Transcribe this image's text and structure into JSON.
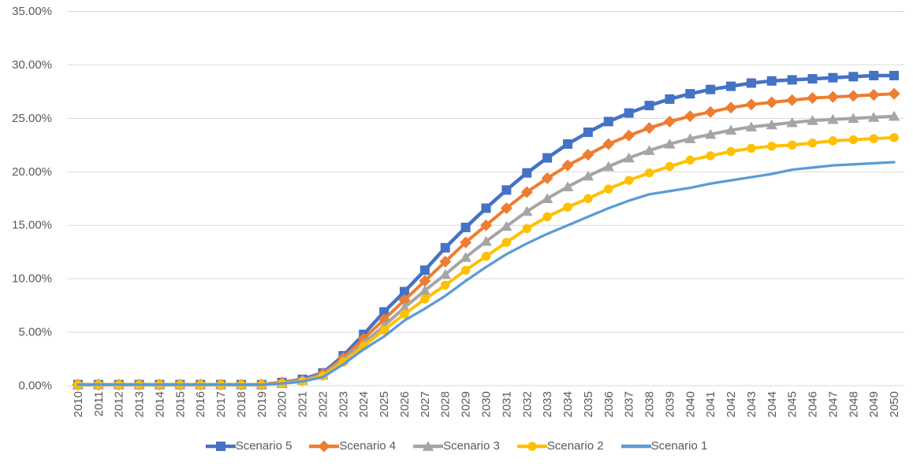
{
  "chart_data": {
    "type": "line",
    "title": "",
    "xlabel": "",
    "ylabel": "",
    "ylim": [
      0,
      35
    ],
    "ytick_step": 5,
    "ytick_labels": [
      "0.00%",
      "5.00%",
      "10.00%",
      "15.00%",
      "20.00%",
      "25.00%",
      "30.00%",
      "35.00%"
    ],
    "grid": "horizontal",
    "legend_position": "bottom",
    "x": [
      "2010",
      "2011",
      "2012",
      "2013",
      "2014",
      "2015",
      "2016",
      "2017",
      "2018",
      "2019",
      "2020",
      "2021",
      "2022",
      "2023",
      "2024",
      "2025",
      "2026",
      "2027",
      "2028",
      "2029",
      "2030",
      "2031",
      "2032",
      "2033",
      "2034",
      "2035",
      "2036",
      "2037",
      "2038",
      "2039",
      "2040",
      "2041",
      "2042",
      "2043",
      "2044",
      "2045",
      "2046",
      "2047",
      "2048",
      "2049",
      "2050"
    ],
    "series": [
      {
        "name": "Scenario 5",
        "color": "#4472C4",
        "marker": "square",
        "values": [
          0.1,
          0.1,
          0.1,
          0.1,
          0.1,
          0.1,
          0.1,
          0.1,
          0.1,
          0.1,
          0.3,
          0.6,
          1.2,
          2.8,
          4.8,
          6.9,
          8.8,
          10.8,
          12.9,
          14.8,
          16.6,
          18.3,
          19.9,
          21.3,
          22.6,
          23.7,
          24.7,
          25.5,
          26.2,
          26.8,
          27.3,
          27.7,
          28.0,
          28.3,
          28.5,
          28.6,
          28.7,
          28.8,
          28.9,
          29.0,
          29.0
        ]
      },
      {
        "name": "Scenario 4",
        "color": "#ED7D31",
        "marker": "diamond",
        "values": [
          0.1,
          0.1,
          0.1,
          0.1,
          0.1,
          0.1,
          0.1,
          0.1,
          0.1,
          0.1,
          0.3,
          0.5,
          1.1,
          2.6,
          4.4,
          6.2,
          8.0,
          9.8,
          11.6,
          13.4,
          15.0,
          16.6,
          18.1,
          19.4,
          20.6,
          21.6,
          22.6,
          23.4,
          24.1,
          24.7,
          25.2,
          25.6,
          26.0,
          26.3,
          26.5,
          26.7,
          26.9,
          27.0,
          27.1,
          27.2,
          27.3
        ]
      },
      {
        "name": "Scenario 3",
        "color": "#A5A5A5",
        "marker": "triangle",
        "values": [
          0.1,
          0.1,
          0.1,
          0.1,
          0.1,
          0.1,
          0.1,
          0.1,
          0.1,
          0.1,
          0.2,
          0.5,
          1.0,
          2.4,
          4.0,
          5.6,
          7.3,
          8.9,
          10.4,
          12.0,
          13.5,
          14.9,
          16.3,
          17.5,
          18.6,
          19.6,
          20.5,
          21.3,
          22.0,
          22.6,
          23.1,
          23.5,
          23.9,
          24.2,
          24.4,
          24.6,
          24.8,
          24.9,
          25.0,
          25.1,
          25.2
        ]
      },
      {
        "name": "Scenario 2",
        "color": "#FFC000",
        "marker": "circle",
        "values": [
          0.1,
          0.1,
          0.1,
          0.1,
          0.1,
          0.1,
          0.1,
          0.1,
          0.1,
          0.1,
          0.2,
          0.4,
          0.9,
          2.2,
          3.7,
          5.2,
          6.7,
          8.1,
          9.4,
          10.8,
          12.1,
          13.4,
          14.7,
          15.8,
          16.7,
          17.5,
          18.4,
          19.2,
          19.9,
          20.5,
          21.1,
          21.5,
          21.9,
          22.2,
          22.4,
          22.5,
          22.7,
          22.9,
          23.0,
          23.1,
          23.2
        ]
      },
      {
        "name": "Scenario 1",
        "color": "#5B9BD5",
        "marker": "none",
        "values": [
          0.1,
          0.1,
          0.1,
          0.1,
          0.1,
          0.1,
          0.1,
          0.1,
          0.1,
          0.1,
          0.2,
          0.4,
          0.8,
          2.0,
          3.4,
          4.6,
          6.1,
          7.2,
          8.4,
          9.8,
          11.1,
          12.3,
          13.3,
          14.2,
          15.0,
          15.8,
          16.6,
          17.3,
          17.9,
          18.2,
          18.5,
          18.9,
          19.2,
          19.5,
          19.8,
          20.2,
          20.4,
          20.6,
          20.7,
          20.8,
          20.9
        ]
      }
    ],
    "colors": {
      "gridline": "#D9D9D9",
      "axis_text": "#595959",
      "background": "#FFFFFF"
    }
  }
}
